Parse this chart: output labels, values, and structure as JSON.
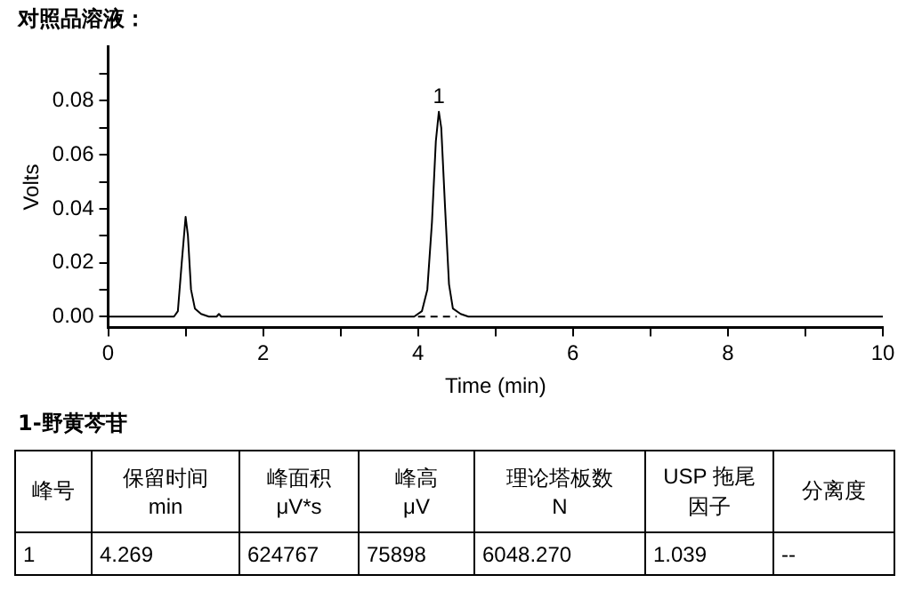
{
  "chart_data": {
    "type": "line",
    "title": "对照品溶液：",
    "xlabel": "Time (min)",
    "ylabel": "Volts",
    "xlim": [
      0,
      10
    ],
    "xticks": [
      0,
      {
        "value": 1,
        "label": null
      },
      2,
      {
        "value": 3,
        "label": null
      },
      4,
      {
        "value": 5,
        "label": null
      },
      6,
      {
        "value": 7,
        "label": null
      },
      8,
      {
        "value": 9,
        "label": null
      },
      10
    ],
    "ylim": [
      -0.004,
      0.1
    ],
    "yticks": [
      "0.00",
      {
        "value": 0.01,
        "label": null
      },
      {
        "value": 0.02,
        "label": "0.02"
      },
      {
        "value": 0.03,
        "label": null
      },
      {
        "value": 0.04,
        "label": "0.04"
      },
      {
        "value": 0.05,
        "label": null
      },
      {
        "value": 0.06,
        "label": "0.06"
      },
      {
        "value": 0.07,
        "label": null
      },
      {
        "value": 0.08,
        "label": "0.08"
      },
      {
        "value": 0.09,
        "label": null
      }
    ],
    "marker": "none",
    "series": [
      {
        "color": "#000000",
        "line_style": "solid",
        "x": [
          0,
          0.85,
          0.9,
          0.95,
          1.0,
          1.03,
          1.07,
          1.12,
          1.2,
          1.3,
          1.4,
          1.43,
          1.46,
          3.95,
          4.05,
          4.12,
          4.18,
          4.23,
          4.269,
          4.3,
          4.35,
          4.4,
          4.45,
          4.55,
          4.65,
          10
        ],
        "values": [
          0,
          0,
          0.002,
          0.02,
          0.037,
          0.03,
          0.01,
          0.003,
          0.001,
          0,
          0,
          0.001,
          0,
          0,
          0.002,
          0.01,
          0.035,
          0.065,
          0.076,
          0.07,
          0.04,
          0.012,
          0.003,
          0.001,
          0,
          0
        ]
      },
      {
        "color": "#000000",
        "line_style": "dashed",
        "x": [
          4.0,
          4.5
        ],
        "values": [
          0,
          0
        ]
      }
    ],
    "annotations": [
      {
        "text": "1",
        "x": 4.269,
        "y": 0.076
      },
      "1-野黄芩苷",
      "峰号",
      "保留时间\nmin",
      "峰面积\nμV*s",
      "峰高\nμV",
      "理论塔板数\nN",
      "USP 拖尾因子",
      "分离度",
      "1",
      "4.269",
      "624767",
      "75898",
      "6048.270",
      "1.039",
      "--"
    ]
  }
}
